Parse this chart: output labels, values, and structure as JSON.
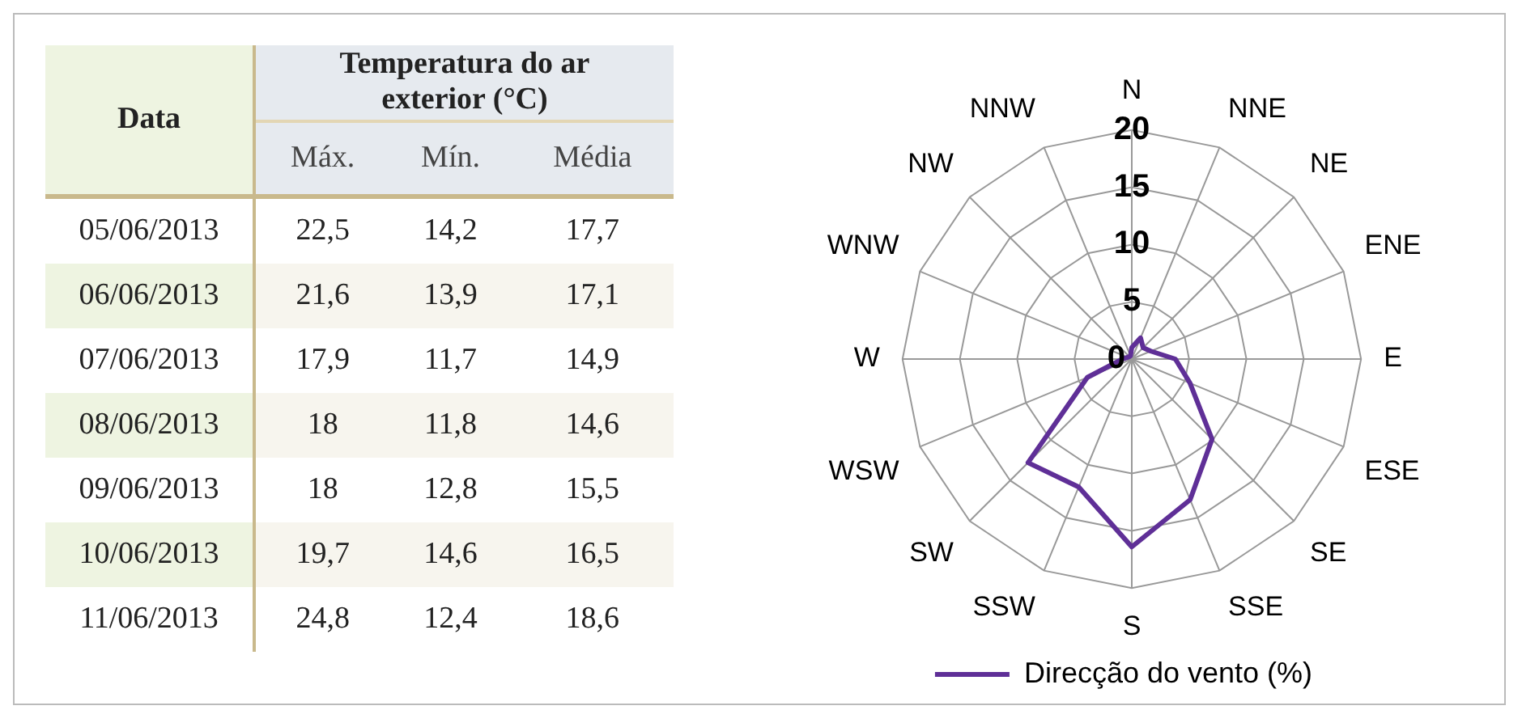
{
  "chart_data": [
    {
      "type": "other",
      "title": "Temperatura do ar exterior (°C)",
      "xlabel": "Data",
      "categories": [
        "05/06/2013",
        "06/06/2013",
        "07/06/2013",
        "08/06/2013",
        "09/06/2013",
        "10/06/2013",
        "11/06/2013"
      ],
      "series": [
        {
          "name": "Máx.",
          "colors": [
            "#ffffff",
            "#f7f5ee",
            "#ffffff",
            "#f7f5ee",
            "#ffffff",
            "#f7f5ee",
            "#ffffff"
          ],
          "values": [
            22.5,
            21.6,
            17.9,
            18,
            18,
            19.7,
            24.8
          ],
          "value_labels": [
            "22,5",
            "21,6",
            "17,9",
            "18",
            "18",
            "19,7",
            "24,8"
          ]
        },
        {
          "name": "Mín.",
          "colors": [
            "#ffffff",
            "#f7f5ee",
            "#ffffff",
            "#f7f5ee",
            "#ffffff",
            "#f7f5ee",
            "#ffffff"
          ],
          "values": [
            14.2,
            13.9,
            11.7,
            11.8,
            12.8,
            14.6,
            12.4
          ],
          "value_labels": [
            "14,2",
            "13,9",
            "11,7",
            "11,8",
            "12,8",
            "14,6",
            "12,4"
          ]
        },
        {
          "name": "Média",
          "colors": [
            "#ffffff",
            "#f7f5ee",
            "#ffffff",
            "#f7f5ee",
            "#ffffff",
            "#f7f5ee",
            "#ffffff"
          ],
          "values": [
            17.7,
            17.1,
            14.9,
            14.6,
            15.5,
            16.5,
            18.6
          ],
          "value_labels": [
            "17,7",
            "17,1",
            "14,9",
            "14,6",
            "15,5",
            "16,5",
            "18,6"
          ]
        }
      ]
    },
    {
      "type": "radar",
      "categories": [
        "N",
        "NNE",
        "NE",
        "ENE",
        "E",
        "ESE",
        "SE",
        "SSE",
        "S",
        "SSW",
        "SW",
        "WSW",
        "W",
        "WNW",
        "NW",
        "NNW"
      ],
      "ylim": [
        0,
        20
      ],
      "yticks": [
        0,
        5,
        10,
        15,
        20
      ],
      "grid": true,
      "legend": "bottom",
      "marker": "none",
      "series": [
        {
          "name": "Direcção do vento (%)",
          "color": "#5f2f97",
          "values": [
            1,
            2,
            1.4,
            1.8,
            3.8,
            5.5,
            9.9,
            13.3,
            16.4,
            12.1,
            12.8,
            4.2,
            0.8,
            0.4,
            0.3,
            0.3
          ]
        }
      ]
    }
  ]
}
